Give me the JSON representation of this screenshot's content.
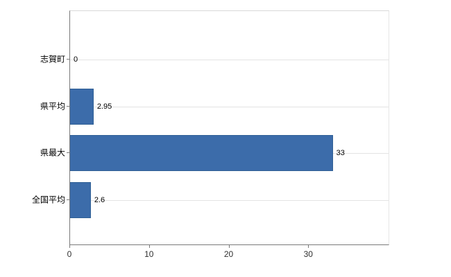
{
  "chart_data": {
    "type": "bar",
    "orientation": "horizontal",
    "categories": [
      "志賀町",
      "県平均",
      "県最大",
      "全国平均"
    ],
    "values": [
      0,
      2.95,
      33,
      2.6
    ],
    "value_labels": [
      "0",
      "2.95",
      "33",
      "2.6"
    ],
    "x_tick_labels": [
      "0",
      "10",
      "20",
      "30"
    ],
    "x_tick_values": [
      0,
      10,
      20,
      30
    ],
    "xlim": [
      0,
      40
    ],
    "bar_color": "#3c6caa",
    "grid": "horizontal-category-gridlines",
    "legend": "none"
  }
}
